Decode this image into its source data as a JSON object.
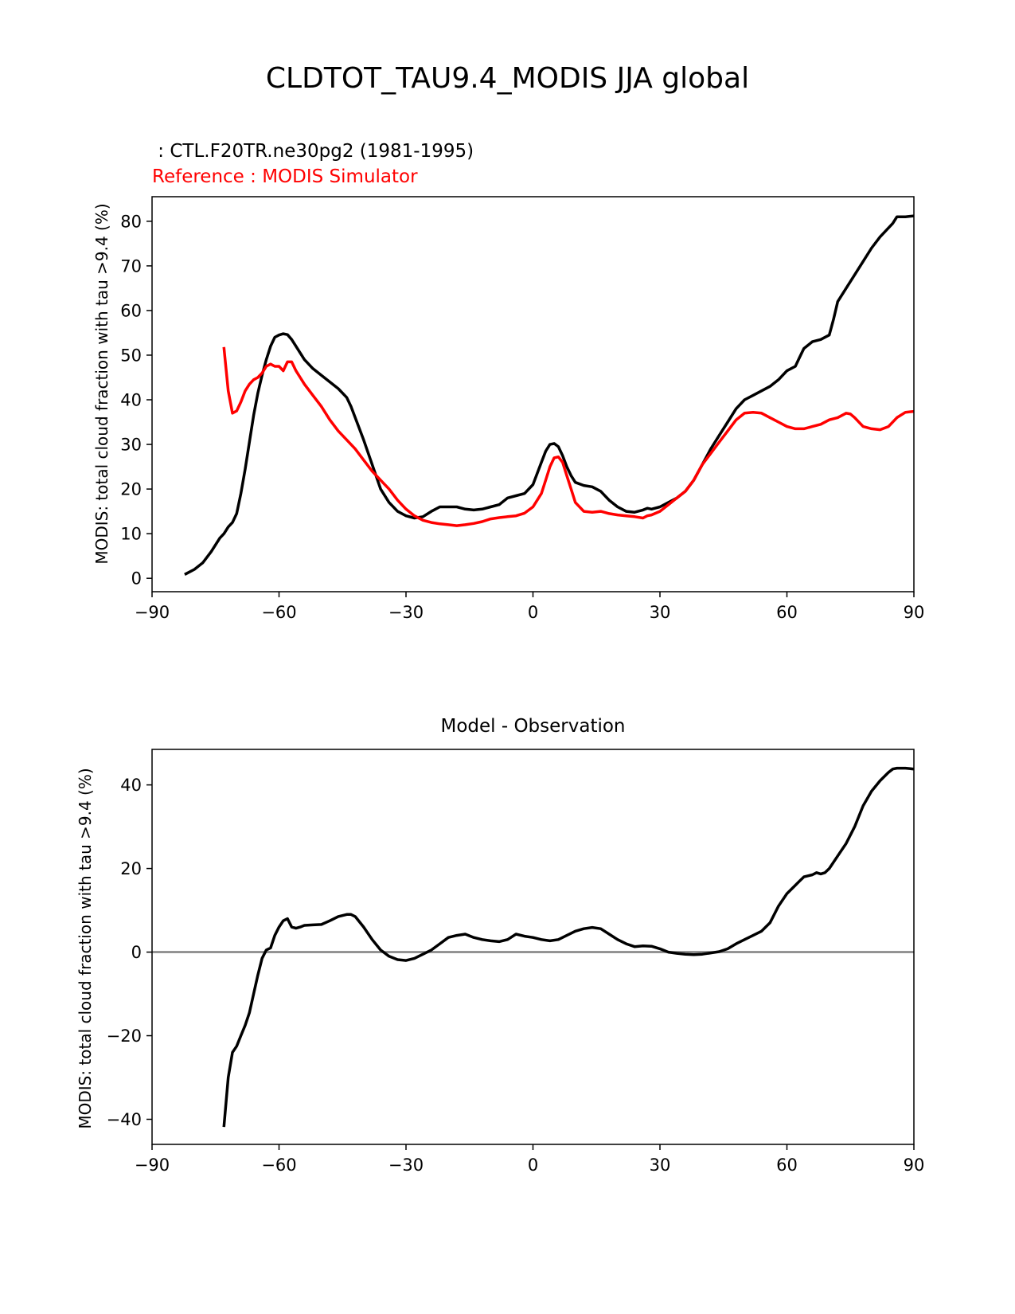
{
  "figure": {
    "suptitle": "CLDTOT_TAU9.4_MODIS JJA global"
  },
  "colors": {
    "test": "#000000",
    "reference": "#ff0000",
    "zero_line": "#808080",
    "axes": "#000000"
  },
  "chart_data": [
    {
      "type": "line",
      "panel": "top",
      "test_label": " : CTL.F20TR.ne30pg2 (1981-1995)",
      "reference_label": "Reference : MODIS Simulator",
      "xlabel": "",
      "ylabel": "MODIS: total cloud fraction with tau >9.4 (%)",
      "xlim": [
        -90,
        90
      ],
      "ylim": [
        -3,
        85.5
      ],
      "xticks": [
        -90,
        -60,
        -30,
        0,
        30,
        60,
        90
      ],
      "xtick_labels": [
        "−90",
        "−60",
        "−30",
        "0",
        "30",
        "60",
        "90"
      ],
      "yticks": [
        0,
        10,
        20,
        30,
        40,
        50,
        60,
        70,
        80
      ],
      "ytick_labels": [
        "0",
        "10",
        "20",
        "30",
        "40",
        "50",
        "60",
        "70",
        "80"
      ],
      "series": [
        {
          "name": "CTL.F20TR.ne30pg2 (1981-1995)",
          "color": "#000000",
          "x": [
            -82,
            -80,
            -78,
            -76,
            -74,
            -73,
            -72,
            -71,
            -70,
            -69,
            -68,
            -67,
            -66,
            -65,
            -64,
            -63,
            -62,
            -61,
            -60,
            -59,
            -58,
            -57,
            -56,
            -55,
            -54,
            -52,
            -50,
            -48,
            -46,
            -44,
            -43,
            -42,
            -40,
            -38,
            -36,
            -34,
            -32,
            -30,
            -28,
            -26,
            -24,
            -22,
            -20,
            -18,
            -16,
            -14,
            -12,
            -10,
            -8,
            -6,
            -4,
            -2,
            0,
            2,
            3,
            4,
            5,
            6,
            7,
            8,
            9,
            10,
            12,
            14,
            16,
            18,
            20,
            22,
            24,
            26,
            27,
            28,
            30,
            32,
            34,
            36,
            38,
            40,
            42,
            44,
            46,
            48,
            50,
            52,
            54,
            56,
            58,
            60,
            62,
            63,
            64,
            66,
            68,
            70,
            71,
            72,
            74,
            76,
            78,
            80,
            82,
            84,
            85,
            86,
            88,
            90
          ],
          "values": [
            1,
            2,
            3.5,
            6,
            9,
            10,
            11.5,
            12.5,
            14.5,
            19,
            24.5,
            30.5,
            36.5,
            41.5,
            45.5,
            49,
            52,
            54,
            54.5,
            54.8,
            54.6,
            53.5,
            52,
            50.5,
            49,
            47,
            45.5,
            44,
            42.5,
            40.5,
            38.5,
            36,
            31,
            25.5,
            20,
            17,
            15,
            14,
            13.5,
            13.8,
            15,
            16,
            16,
            16,
            15.5,
            15.3,
            15.5,
            16,
            16.5,
            18,
            18.5,
            19,
            21,
            26,
            28.5,
            30,
            30.2,
            29.5,
            27.5,
            25,
            23,
            21.5,
            20.8,
            20.5,
            19.5,
            17.5,
            16,
            15,
            14.8,
            15.3,
            15.7,
            15.5,
            16,
            17,
            18,
            19.5,
            22,
            25.5,
            29,
            32,
            35,
            38,
            40,
            41,
            42,
            43,
            44.5,
            46.5,
            47.5,
            49.5,
            51.5,
            53,
            53.5,
            54.5,
            58,
            62,
            65,
            68,
            71,
            74,
            76.5,
            78.5,
            79.5,
            81,
            81,
            81.2
          ]
        },
        {
          "name": "MODIS Simulator",
          "color": "#ff0000",
          "x": [
            -73,
            -72,
            -71,
            -70,
            -69,
            -68,
            -67,
            -66,
            -65,
            -64,
            -63,
            -62,
            -61,
            -60,
            -59,
            -58,
            -57,
            -56,
            -55,
            -54,
            -52,
            -50,
            -48,
            -46,
            -44,
            -42,
            -40,
            -38,
            -36,
            -34,
            -32,
            -30,
            -28,
            -26,
            -24,
            -22,
            -20,
            -18,
            -16,
            -14,
            -12,
            -10,
            -8,
            -6,
            -4,
            -2,
            0,
            2,
            3,
            4,
            5,
            6,
            7,
            8,
            9,
            10,
            12,
            14,
            16,
            18,
            20,
            22,
            24,
            26,
            27,
            28,
            30,
            32,
            34,
            36,
            38,
            40,
            42,
            44,
            46,
            48,
            50,
            52,
            54,
            56,
            58,
            60,
            62,
            64,
            66,
            68,
            70,
            72,
            74,
            75,
            76,
            78,
            80,
            82,
            84,
            86,
            88,
            90
          ],
          "values": [
            51.5,
            42,
            37,
            37.5,
            39.5,
            42,
            43.5,
            44.5,
            45,
            46,
            47.5,
            48,
            47.5,
            47.5,
            46.5,
            48.5,
            48.5,
            46.5,
            45,
            43.5,
            41,
            38.5,
            35.5,
            33,
            31,
            29,
            26.5,
            24,
            22,
            20,
            17.5,
            15.5,
            14,
            13,
            12.5,
            12.2,
            12,
            11.8,
            12,
            12.3,
            12.7,
            13.3,
            13.6,
            13.8,
            14,
            14.6,
            16,
            19,
            22,
            25,
            27,
            27.2,
            26,
            23,
            20,
            17,
            15,
            14.8,
            15,
            14.5,
            14.2,
            14,
            13.8,
            13.5,
            14,
            14.2,
            15,
            16.5,
            18,
            19.5,
            22,
            25.5,
            28,
            30.5,
            33,
            35.5,
            37,
            37.2,
            37,
            36,
            35,
            34,
            33.5,
            33.5,
            34,
            34.5,
            35.5,
            36,
            37,
            36.8,
            36,
            34,
            33.5,
            33.3,
            34,
            36,
            37.2,
            37.4
          ]
        }
      ]
    },
    {
      "type": "line",
      "panel": "bottom",
      "title": "Model - Observation",
      "xlabel": "",
      "ylabel": "MODIS: total cloud fraction with tau >9.4 (%)",
      "xlim": [
        -90,
        90
      ],
      "ylim": [
        -46,
        48.5
      ],
      "xticks": [
        -90,
        -60,
        -30,
        0,
        30,
        60,
        90
      ],
      "xtick_labels": [
        "−90",
        "−60",
        "−30",
        "0",
        "30",
        "60",
        "90"
      ],
      "yticks": [
        -40,
        -20,
        0,
        20,
        40
      ],
      "ytick_labels": [
        "−40",
        "−20",
        "0",
        "20",
        "40"
      ],
      "reference_line": {
        "y": 0,
        "color": "#808080"
      },
      "series": [
        {
          "name": "Model - Observation",
          "color": "#000000",
          "x": [
            -73,
            -72,
            -71,
            -70,
            -69,
            -68,
            -67,
            -66,
            -65,
            -64,
            -63,
            -62,
            -61,
            -60,
            -59,
            -58,
            -57,
            -56,
            -55,
            -54,
            -52,
            -50,
            -48,
            -46,
            -44,
            -43,
            -42,
            -40,
            -38,
            -36,
            -34,
            -32,
            -30,
            -28,
            -26,
            -24,
            -22,
            -20,
            -18,
            -16,
            -14,
            -12,
            -10,
            -8,
            -6,
            -4,
            -2,
            0,
            2,
            4,
            6,
            8,
            10,
            12,
            14,
            16,
            18,
            20,
            22,
            24,
            26,
            28,
            30,
            32,
            34,
            36,
            38,
            40,
            42,
            44,
            46,
            48,
            50,
            52,
            54,
            56,
            58,
            60,
            62,
            63,
            64,
            66,
            67,
            68,
            69,
            70,
            72,
            74,
            76,
            78,
            80,
            82,
            84,
            85,
            86,
            88,
            90
          ],
          "values": [
            -41.5,
            -30,
            -24,
            -22.5,
            -20,
            -17.5,
            -14.5,
            -10,
            -5.5,
            -1.5,
            0.5,
            1,
            4,
            6,
            7.5,
            8,
            6,
            5.7,
            6,
            6.4,
            6.5,
            6.6,
            7.5,
            8.5,
            9,
            9,
            8.5,
            6,
            3,
            0.5,
            -1,
            -1.8,
            -2,
            -1.5,
            -0.5,
            0.5,
            2,
            3.5,
            4,
            4.3,
            3.5,
            3,
            2.7,
            2.5,
            3,
            4.3,
            3.8,
            3.5,
            3,
            2.7,
            3,
            4,
            5,
            5.6,
            5.9,
            5.6,
            4.3,
            3,
            2,
            1.3,
            1.5,
            1.4,
            0.8,
            0,
            -0.3,
            -0.5,
            -0.6,
            -0.5,
            -0.2,
            0.1,
            0.8,
            2,
            3,
            4,
            5,
            7,
            11,
            14,
            16,
            17,
            18,
            18.5,
            19,
            18.7,
            19,
            20,
            23,
            26,
            30,
            35,
            38.5,
            41,
            43,
            43.8,
            44,
            44,
            43.8
          ]
        }
      ]
    }
  ]
}
